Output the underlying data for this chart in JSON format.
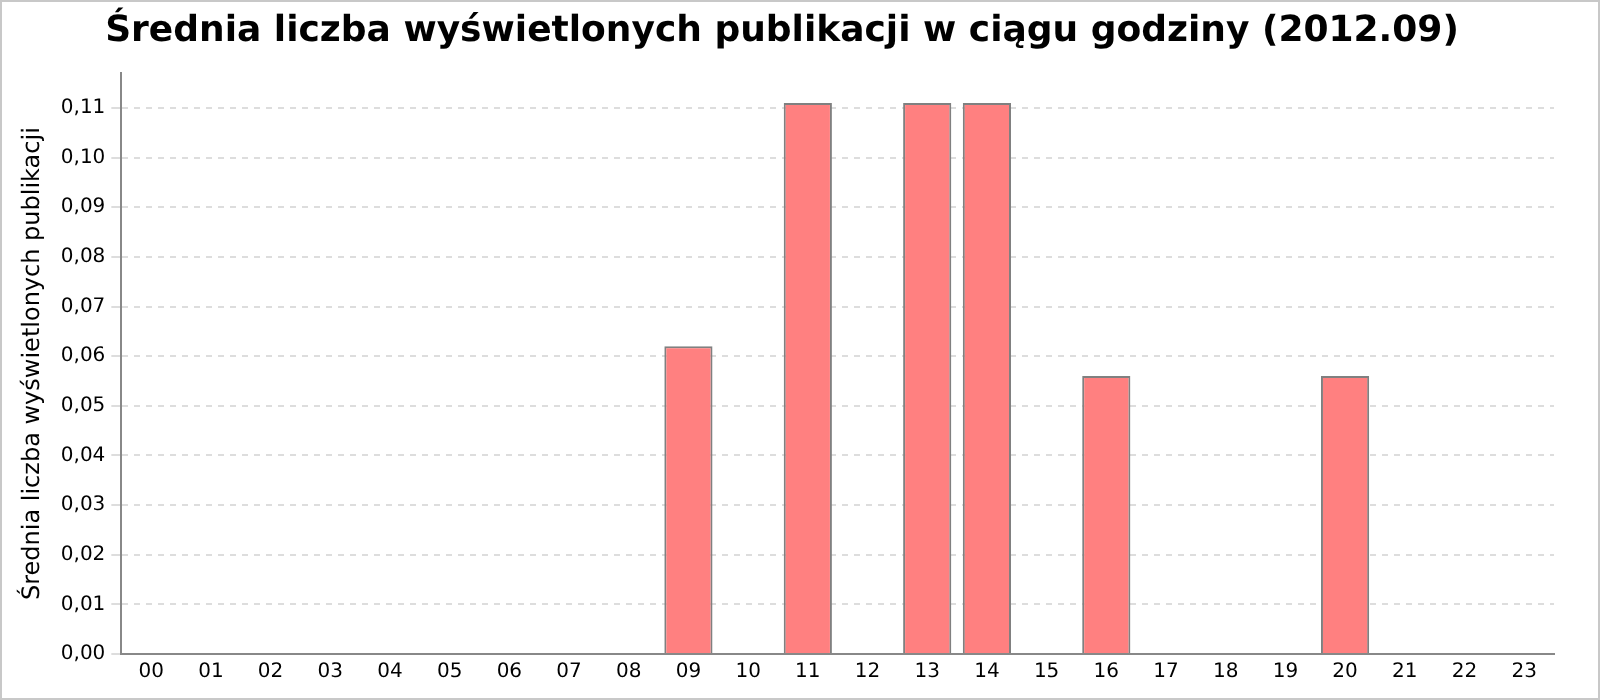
{
  "chart_data": {
    "type": "bar",
    "title": "Średnia liczba wyświetlonych publikacji w ciągu godziny (2012.09)",
    "ylabel": "Średnia liczba wyświetlonych publikacji",
    "categories": [
      "00",
      "01",
      "02",
      "03",
      "04",
      "05",
      "06",
      "07",
      "08",
      "09",
      "10",
      "11",
      "12",
      "13",
      "14",
      "15",
      "16",
      "17",
      "18",
      "19",
      "20",
      "21",
      "22",
      "23"
    ],
    "values": [
      0,
      0,
      0,
      0,
      0,
      0,
      0,
      0,
      0,
      0.062,
      0,
      0.111,
      0,
      0.111,
      0.111,
      0,
      0.056,
      0,
      0,
      0,
      0.056,
      0,
      0,
      0
    ],
    "color": "#ff8080",
    "ylim": [
      0,
      0.117
    ],
    "yticks": [
      {
        "value": 0,
        "label": "0,00"
      },
      {
        "value": 0.01,
        "label": "0,01"
      },
      {
        "value": 0.02,
        "label": "0,02"
      },
      {
        "value": 0.03,
        "label": "0,03"
      },
      {
        "value": 0.04,
        "label": "0,04"
      },
      {
        "value": 0.05,
        "label": "0,05"
      },
      {
        "value": 0.06,
        "label": "0,06"
      },
      {
        "value": 0.07,
        "label": "0,07"
      },
      {
        "value": 0.08,
        "label": "0,08"
      },
      {
        "value": 0.09,
        "label": "0,09"
      },
      {
        "value": 0.1,
        "label": "0,10"
      },
      {
        "value": 0.11,
        "label": "0,11"
      }
    ],
    "grid": "y",
    "legend": false
  }
}
